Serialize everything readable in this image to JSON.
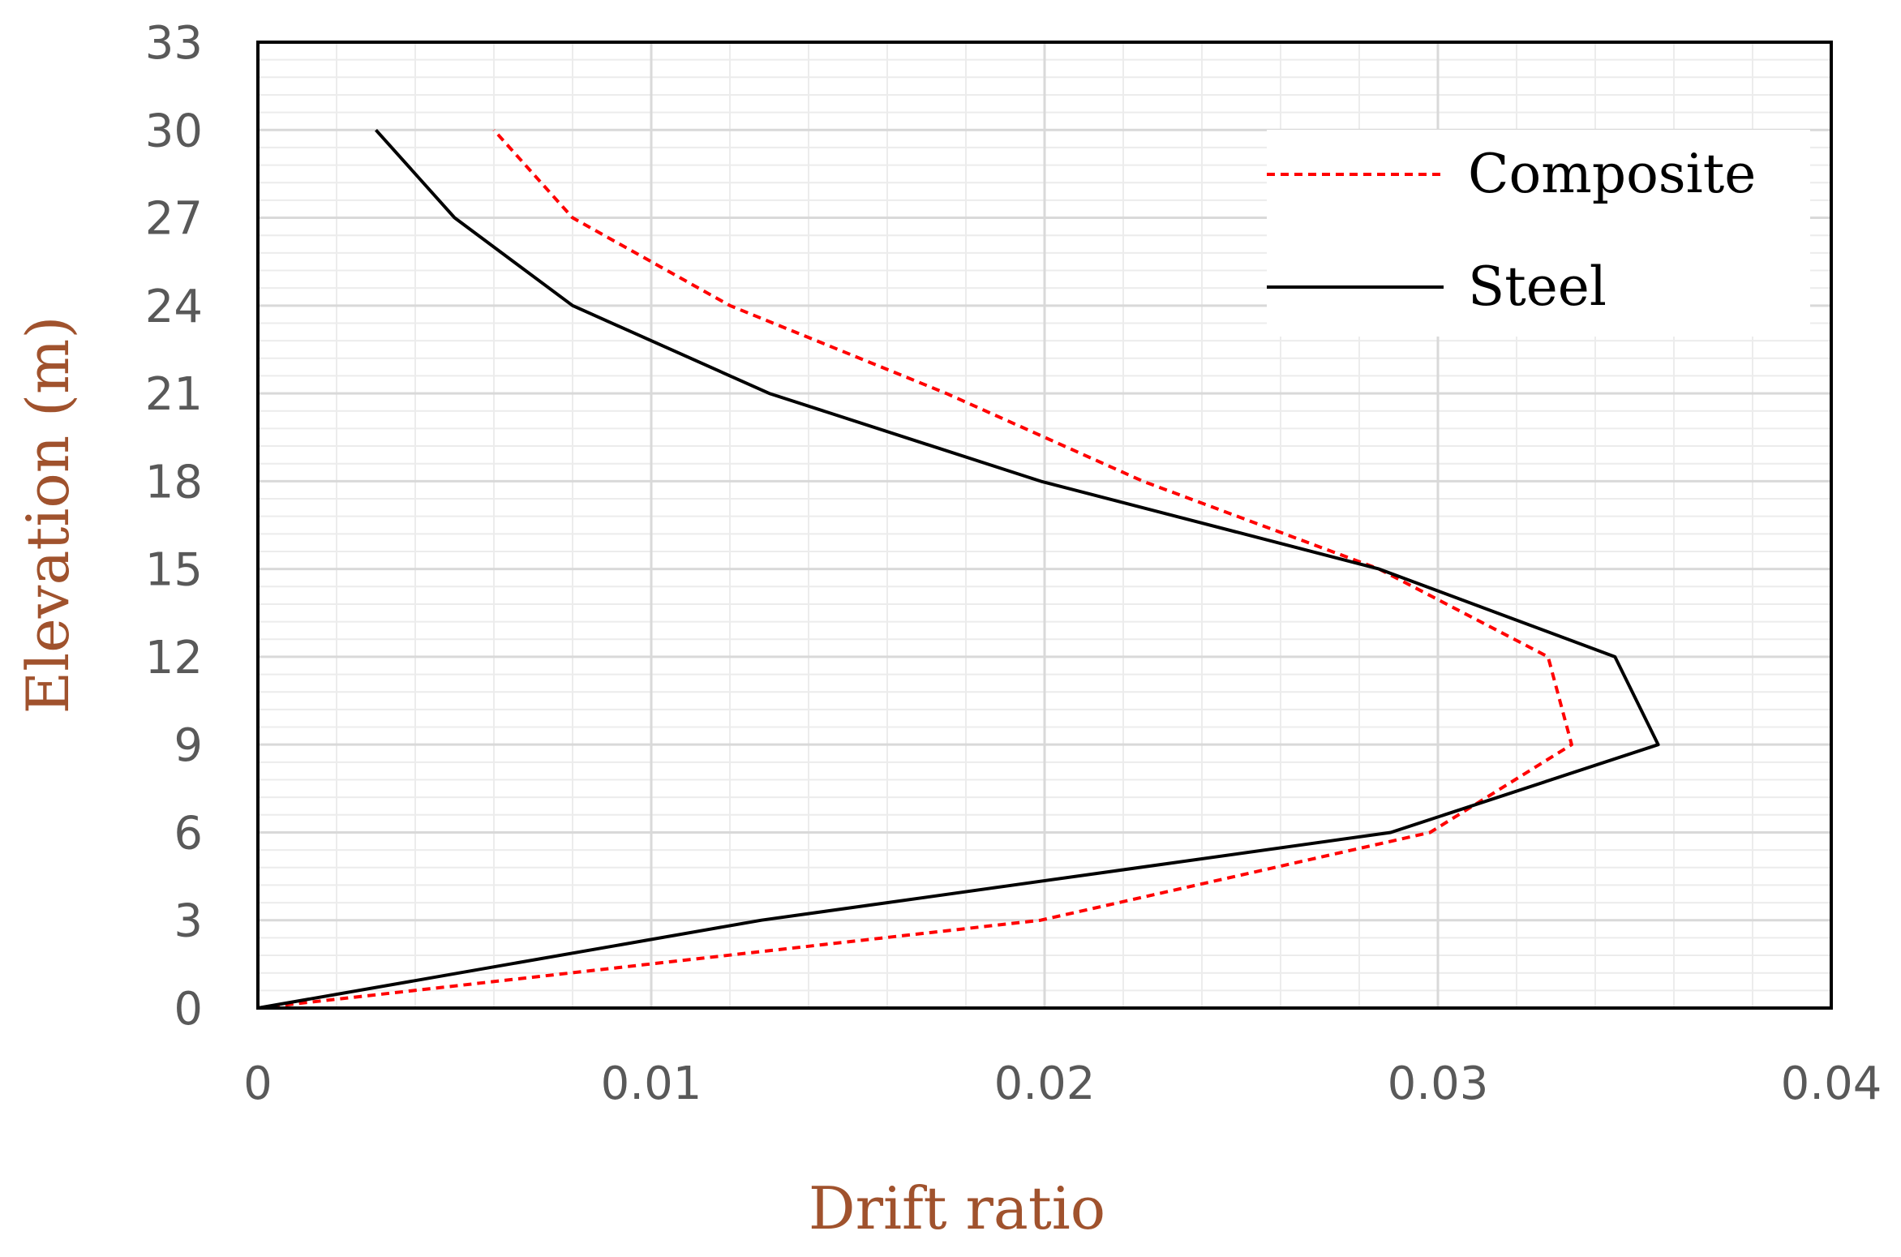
{
  "chart_data": {
    "type": "line",
    "title": "",
    "xlabel": "Drift ratio",
    "ylabel": "Elevation (m)",
    "xlim": [
      0,
      0.04
    ],
    "ylim": [
      0,
      33
    ],
    "x_ticks": [
      0,
      0.01,
      0.02,
      0.03,
      0.04
    ],
    "x_tick_labels": [
      "0",
      "0.01",
      "0.02",
      "0.03",
      "0.04"
    ],
    "y_ticks": [
      0,
      3,
      6,
      9,
      12,
      15,
      18,
      21,
      24,
      27,
      30,
      33
    ],
    "y_tick_labels": [
      "0",
      "3",
      "6",
      "9",
      "12",
      "15",
      "18",
      "21",
      "24",
      "27",
      "30",
      "33"
    ],
    "grid": true,
    "legend_position": "top-right",
    "series": [
      {
        "name": "Composite",
        "color": "#ff0000",
        "style": "dashed",
        "points": [
          {
            "x": 0,
            "y": 0
          },
          {
            "x": 0.0199,
            "y": 3
          },
          {
            "x": 0.0298,
            "y": 6
          },
          {
            "x": 0.0334,
            "y": 9
          },
          {
            "x": 0.0328,
            "y": 12
          },
          {
            "x": 0.0285,
            "y": 15
          },
          {
            "x": 0.0225,
            "y": 18
          },
          {
            "x": 0.0175,
            "y": 21
          },
          {
            "x": 0.012,
            "y": 24
          },
          {
            "x": 0.008,
            "y": 27
          },
          {
            "x": 0.006,
            "y": 30
          }
        ]
      },
      {
        "name": "Steel",
        "color": "#000000",
        "style": "solid",
        "points": [
          {
            "x": 0,
            "y": 0
          },
          {
            "x": 0.0128,
            "y": 3
          },
          {
            "x": 0.0288,
            "y": 6
          },
          {
            "x": 0.0356,
            "y": 9
          },
          {
            "x": 0.0345,
            "y": 12
          },
          {
            "x": 0.0285,
            "y": 15
          },
          {
            "x": 0.0199,
            "y": 18
          },
          {
            "x": 0.013,
            "y": 21
          },
          {
            "x": 0.008,
            "y": 24
          },
          {
            "x": 0.005,
            "y": 27
          },
          {
            "x": 0.003,
            "y": 30
          }
        ]
      }
    ]
  },
  "colors": {
    "axis_title": "#a0522d",
    "tick_label": "#595959",
    "major_grid": "#d9d9d9",
    "minor_grid": "#ececec",
    "plot_border": "#000000"
  }
}
